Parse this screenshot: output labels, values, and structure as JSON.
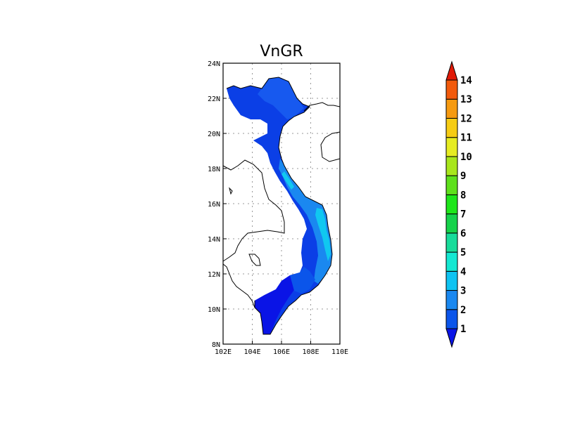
{
  "title": "VnGR",
  "lat_ticks": [
    "24N",
    "22N",
    "20N",
    "18N",
    "16N",
    "14N",
    "12N",
    "10N",
    "8N"
  ],
  "lon_ticks": [
    "102E",
    "104E",
    "106E",
    "108E",
    "110E"
  ],
  "extent": {
    "lon": [
      102,
      110
    ],
    "lat": [
      8,
      24
    ]
  },
  "colorbar": {
    "labels": [
      "1",
      "2",
      "3",
      "4",
      "5",
      "6",
      "7",
      "8",
      "9",
      "10",
      "11",
      "12",
      "13",
      "14"
    ],
    "colors": [
      "#0a14e6",
      "#0b55ea",
      "#1a88f0",
      "#0ec3f2",
      "#14e8d2",
      "#18dc9a",
      "#16d24a",
      "#1ee61a",
      "#5ee01c",
      "#a8e61c",
      "#e6ec22",
      "#f6cc14",
      "#f69a10",
      "#f25a0c",
      "#e11a08"
    ],
    "under_color": "#0a14e6",
    "over_color": "#e11a08"
  },
  "chart_data": {
    "type": "heatmap",
    "title": "VnGR",
    "x_range": [
      102,
      110
    ],
    "y_range": [
      8,
      24
    ],
    "legend_placement": "right",
    "grid": true,
    "regions": [
      {
        "name": "",
        "lon_range": [
          102.3,
          107.3
        ],
        "lat_range": [
          19.0,
          23.3
        ],
        "value": 1.5
      },
      {
        "name": "",
        "lon_range": [
          104.5,
          107.8
        ],
        "lat_range": [
          16.0,
          19.0
        ],
        "value": 2.2
      },
      {
        "name": "",
        "lon_range": [
          107.8,
          109.4
        ],
        "lat_range": [
          12.0,
          16.0
        ],
        "value": 3.0
      },
      {
        "name": "",
        "lon_range": [
          106.0,
          108.8
        ],
        "lat_range": [
          11.0,
          15.5
        ],
        "value": 2.2
      },
      {
        "name": "",
        "lon_range": [
          104.5,
          107.5
        ],
        "lat_range": [
          8.6,
          11.5
        ],
        "value": 1.3
      }
    ]
  }
}
